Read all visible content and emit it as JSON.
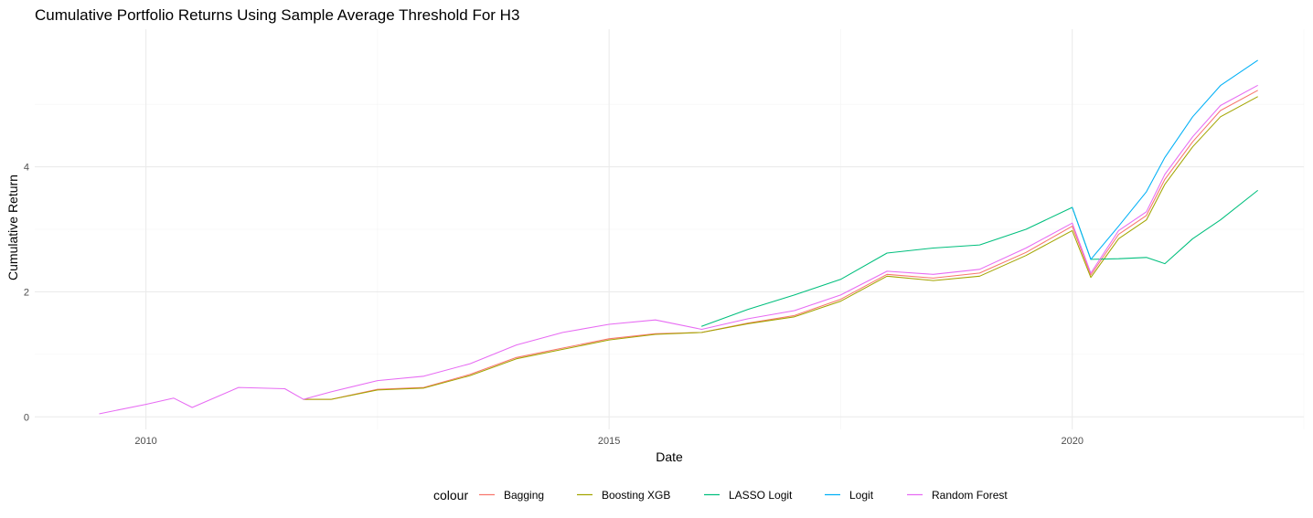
{
  "chart_data": {
    "type": "line",
    "title": "Cumulative Portfolio Returns Using Sample Average Threshold For H3",
    "xlabel": "Date",
    "ylabel": "Cumulative Return",
    "xlim": [
      2008.8,
      2022.5
    ],
    "ylim": [
      -0.2,
      6.2
    ],
    "x_ticks": [
      2010,
      2015,
      2020
    ],
    "x_tick_labels": [
      "2010",
      "2015",
      "2020"
    ],
    "y_ticks": [
      0,
      2,
      4
    ],
    "y_tick_labels": [
      "0",
      "2",
      "4"
    ],
    "grid": true,
    "legend_position": "bottom",
    "legend_title": "colour",
    "series": [
      {
        "name": "Bagging",
        "color": "#F8766D",
        "points": [
          [
            2011.7,
            0.28
          ],
          [
            2012.0,
            0.28
          ],
          [
            2012.5,
            0.44
          ],
          [
            2013.0,
            0.47
          ],
          [
            2013.5,
            0.68
          ],
          [
            2014.0,
            0.95
          ],
          [
            2014.5,
            1.1
          ],
          [
            2015.0,
            1.25
          ],
          [
            2015.5,
            1.33
          ],
          [
            2016.0,
            1.35
          ],
          [
            2016.5,
            1.5
          ],
          [
            2017.0,
            1.62
          ],
          [
            2017.5,
            1.88
          ],
          [
            2018.0,
            2.28
          ],
          [
            2018.5,
            2.22
          ],
          [
            2019.0,
            2.3
          ],
          [
            2019.5,
            2.63
          ],
          [
            2020.0,
            3.05
          ],
          [
            2020.2,
            2.27
          ],
          [
            2020.5,
            2.92
          ],
          [
            2020.8,
            3.22
          ],
          [
            2021.0,
            3.8
          ],
          [
            2021.3,
            4.4
          ],
          [
            2021.6,
            4.9
          ],
          [
            2022.0,
            5.22
          ]
        ]
      },
      {
        "name": "Boosting XGB",
        "color": "#A3A500",
        "points": [
          [
            2011.7,
            0.28
          ],
          [
            2012.0,
            0.28
          ],
          [
            2012.5,
            0.43
          ],
          [
            2013.0,
            0.46
          ],
          [
            2013.5,
            0.66
          ],
          [
            2014.0,
            0.93
          ],
          [
            2014.5,
            1.08
          ],
          [
            2015.0,
            1.23
          ],
          [
            2015.5,
            1.32
          ],
          [
            2016.0,
            1.35
          ],
          [
            2016.5,
            1.49
          ],
          [
            2017.0,
            1.6
          ],
          [
            2017.5,
            1.85
          ],
          [
            2018.0,
            2.25
          ],
          [
            2018.5,
            2.18
          ],
          [
            2019.0,
            2.25
          ],
          [
            2019.5,
            2.58
          ],
          [
            2020.0,
            2.98
          ],
          [
            2020.2,
            2.23
          ],
          [
            2020.5,
            2.85
          ],
          [
            2020.8,
            3.15
          ],
          [
            2021.0,
            3.72
          ],
          [
            2021.3,
            4.32
          ],
          [
            2021.6,
            4.8
          ],
          [
            2022.0,
            5.12
          ]
        ]
      },
      {
        "name": "LASSO Logit",
        "color": "#00BF7D",
        "points": [
          [
            2016.0,
            1.45
          ],
          [
            2016.5,
            1.72
          ],
          [
            2017.0,
            1.95
          ],
          [
            2017.5,
            2.2
          ],
          [
            2018.0,
            2.62
          ],
          [
            2018.5,
            2.7
          ],
          [
            2019.0,
            2.75
          ],
          [
            2019.5,
            3.0
          ],
          [
            2020.0,
            3.35
          ],
          [
            2020.2,
            2.52
          ],
          [
            2020.5,
            2.53
          ],
          [
            2020.8,
            2.55
          ],
          [
            2021.0,
            2.45
          ],
          [
            2021.3,
            2.85
          ],
          [
            2021.6,
            3.15
          ],
          [
            2022.0,
            3.62
          ]
        ]
      },
      {
        "name": "Logit",
        "color": "#00B0F6",
        "points": [
          [
            2020.0,
            3.35
          ],
          [
            2020.2,
            2.52
          ],
          [
            2020.5,
            3.05
          ],
          [
            2020.8,
            3.6
          ],
          [
            2021.0,
            4.15
          ],
          [
            2021.3,
            4.8
          ],
          [
            2021.6,
            5.3
          ],
          [
            2022.0,
            5.7
          ]
        ]
      },
      {
        "name": "Random Forest",
        "color": "#E76BF3",
        "points": [
          [
            2009.5,
            0.05
          ],
          [
            2010.0,
            0.2
          ],
          [
            2010.3,
            0.3
          ],
          [
            2010.5,
            0.15
          ],
          [
            2011.0,
            0.47
          ],
          [
            2011.5,
            0.45
          ],
          [
            2011.7,
            0.28
          ],
          [
            2012.0,
            0.4
          ],
          [
            2012.5,
            0.58
          ],
          [
            2013.0,
            0.65
          ],
          [
            2013.5,
            0.85
          ],
          [
            2014.0,
            1.15
          ],
          [
            2014.5,
            1.35
          ],
          [
            2015.0,
            1.48
          ],
          [
            2015.5,
            1.55
          ],
          [
            2016.0,
            1.4
          ],
          [
            2016.5,
            1.57
          ],
          [
            2017.0,
            1.7
          ],
          [
            2017.5,
            1.95
          ],
          [
            2018.0,
            2.33
          ],
          [
            2018.5,
            2.28
          ],
          [
            2019.0,
            2.36
          ],
          [
            2019.5,
            2.7
          ],
          [
            2020.0,
            3.1
          ],
          [
            2020.2,
            2.3
          ],
          [
            2020.5,
            2.98
          ],
          [
            2020.8,
            3.28
          ],
          [
            2021.0,
            3.88
          ],
          [
            2021.3,
            4.48
          ],
          [
            2021.6,
            4.98
          ],
          [
            2022.0,
            5.3
          ]
        ]
      }
    ]
  }
}
